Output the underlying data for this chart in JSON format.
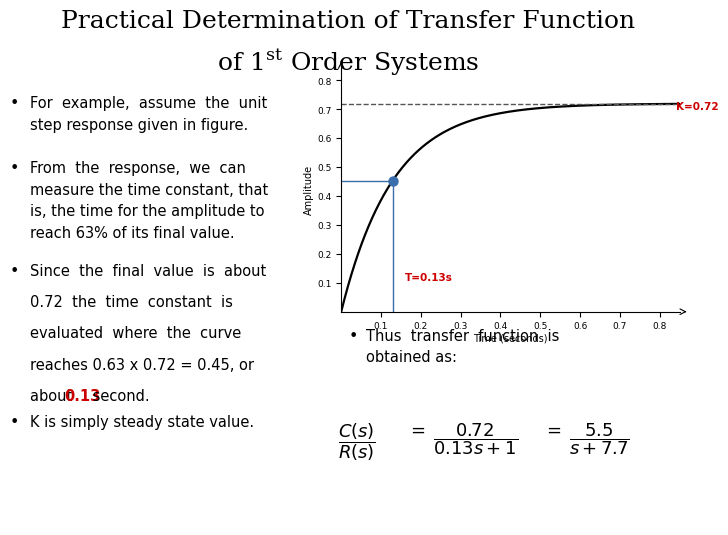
{
  "title_line1": "Practical Determination of Transfer Function",
  "title_line2_prefix": "of 1",
  "title_line2_super": "st",
  "title_line2_suffix": " Order Systems",
  "title_fontsize": 18,
  "bg_color": "#ffffff",
  "bullet_fontsize": 10.5,
  "K": 0.72,
  "T": 0.13,
  "t_max": 0.85,
  "plot_xlim": [
    0,
    0.85
  ],
  "plot_ylim": [
    0,
    0.85
  ],
  "plot_yticks": [
    0.1,
    0.2,
    0.3,
    0.4,
    0.5,
    0.6,
    0.7,
    0.8
  ],
  "plot_xticks": [
    0.1,
    0.2,
    0.3,
    0.4,
    0.5,
    0.6,
    0.7,
    0.8
  ],
  "xlabel": "Time (seconds)",
  "ylabel": "Amplitude",
  "curve_color": "#000000",
  "dashed_color": "#555555",
  "annotation_color_red": "#cc0000",
  "marker_color": "#3a6eab",
  "crosshair_color": "#3a6eab"
}
